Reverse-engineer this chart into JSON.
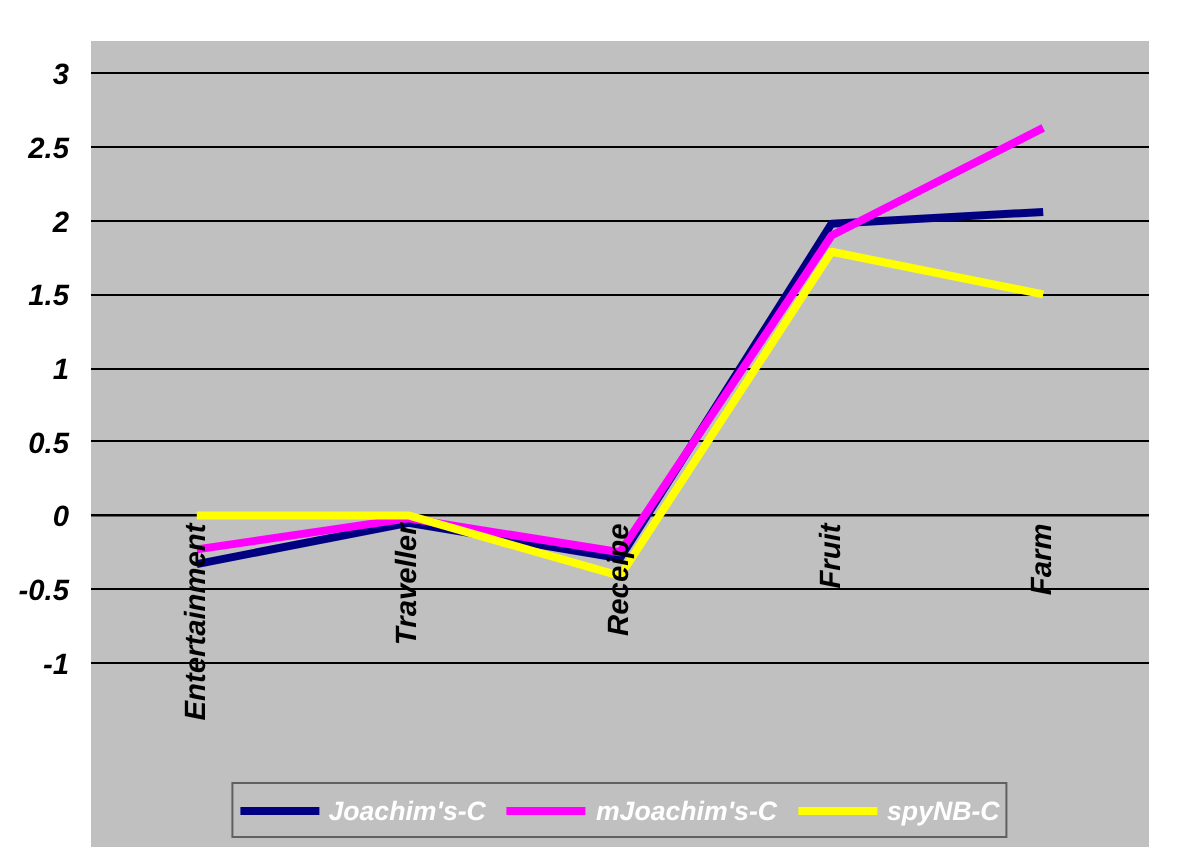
{
  "chart_data": {
    "type": "line",
    "categories": [
      "Entertainment",
      "Traveller",
      "Receipe",
      "Fruit",
      "Farm"
    ],
    "series": [
      {
        "name": "Joachim's-C",
        "color": "#000080",
        "values": [
          -0.33,
          -0.05,
          -0.29,
          1.98,
          2.06
        ]
      },
      {
        "name": "mJoachim's-C",
        "color": "#ff00ff",
        "values": [
          -0.23,
          -0.02,
          -0.25,
          1.9,
          2.63
        ]
      },
      {
        "name": "spyNB-C",
        "color": "#ffff00",
        "values": [
          0,
          0,
          -0.41,
          1.79,
          1.5
        ]
      }
    ],
    "ylim": [
      -2.25,
      3.22
    ],
    "yticks": [
      {
        "value": -1,
        "label": "-1"
      },
      {
        "value": -0.5,
        "label": "-0.5"
      },
      {
        "value": 0,
        "label": "0"
      },
      {
        "value": 0.5,
        "label": "0.5"
      },
      {
        "value": 1,
        "label": "1"
      },
      {
        "value": 1.5,
        "label": "1.5"
      },
      {
        "value": 2,
        "label": "2"
      },
      {
        "value": 2.5,
        "label": "2.5"
      },
      {
        "value": 3,
        "label": "3"
      }
    ],
    "grid": "y",
    "legend": "bottom",
    "marker": "none",
    "line_style": "solid"
  }
}
